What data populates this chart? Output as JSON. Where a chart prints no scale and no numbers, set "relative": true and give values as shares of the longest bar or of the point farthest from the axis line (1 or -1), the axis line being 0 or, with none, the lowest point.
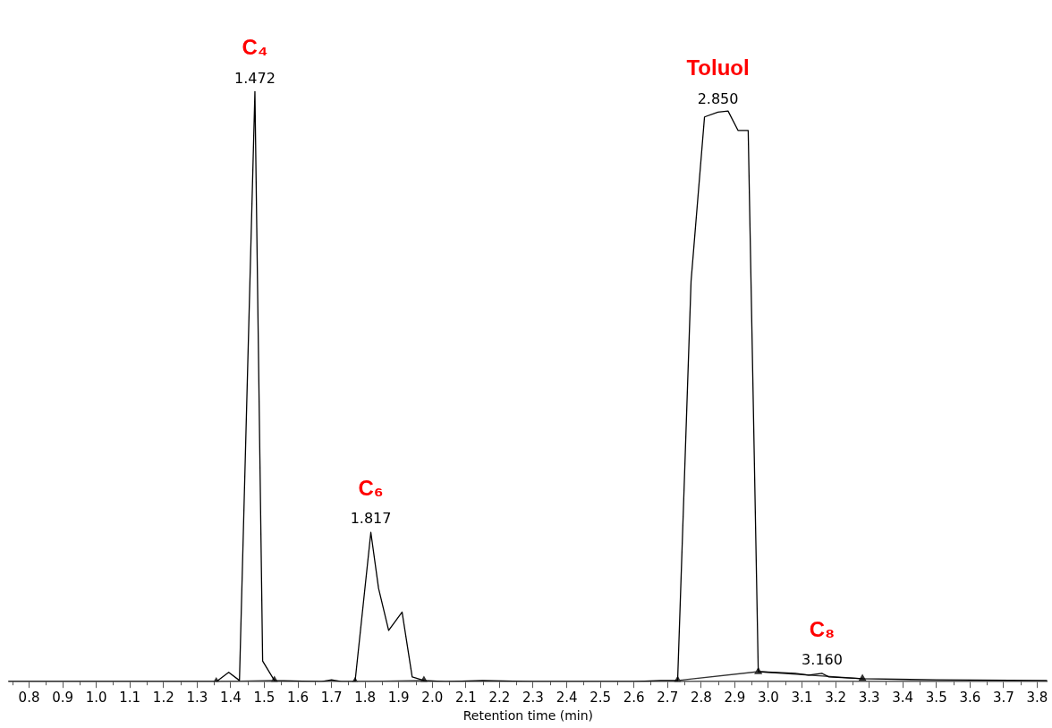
{
  "chart_data": {
    "type": "line",
    "xlabel": "Retention time (min)",
    "relative": true,
    "xlim": [
      0.74,
      3.83
    ],
    "xticks": [
      {
        "value": 0.75,
        "label": null
      },
      {
        "value": 0.8,
        "label": "0.8"
      },
      {
        "value": 0.85,
        "label": null
      },
      {
        "value": 0.9,
        "label": "0.9"
      },
      {
        "value": 0.95,
        "label": null
      },
      {
        "value": 1.0,
        "label": "1.0"
      },
      {
        "value": 1.05,
        "label": null
      },
      {
        "value": 1.1,
        "label": "1.1"
      },
      {
        "value": 1.15,
        "label": null
      },
      {
        "value": 1.2,
        "label": "1.2"
      },
      {
        "value": 1.25,
        "label": null
      },
      {
        "value": 1.3,
        "label": "1.3"
      },
      {
        "value": 1.35,
        "label": null
      },
      {
        "value": 1.4,
        "label": "1.4"
      },
      {
        "value": 1.45,
        "label": null
      },
      {
        "value": 1.5,
        "label": "1.5"
      },
      {
        "value": 1.55,
        "label": null
      },
      {
        "value": 1.6,
        "label": "1.6"
      },
      {
        "value": 1.65,
        "label": null
      },
      {
        "value": 1.7,
        "label": "1.7"
      },
      {
        "value": 1.75,
        "label": null
      },
      {
        "value": 1.8,
        "label": "1.8"
      },
      {
        "value": 1.85,
        "label": null
      },
      {
        "value": 1.9,
        "label": "1.9"
      },
      {
        "value": 1.95,
        "label": null
      },
      {
        "value": 2.0,
        "label": "2.0"
      },
      {
        "value": 2.05,
        "label": null
      },
      {
        "value": 2.1,
        "label": "2.1"
      },
      {
        "value": 2.15,
        "label": null
      },
      {
        "value": 2.2,
        "label": "2.2"
      },
      {
        "value": 2.25,
        "label": null
      },
      {
        "value": 2.3,
        "label": "2.3"
      },
      {
        "value": 2.35,
        "label": null
      },
      {
        "value": 2.4,
        "label": "2.4"
      },
      {
        "value": 2.45,
        "label": null
      },
      {
        "value": 2.5,
        "label": "2.5"
      },
      {
        "value": 2.55,
        "label": null
      },
      {
        "value": 2.6,
        "label": "2.6"
      },
      {
        "value": 2.65,
        "label": null
      },
      {
        "value": 2.7,
        "label": "2.7"
      },
      {
        "value": 2.75,
        "label": null
      },
      {
        "value": 2.8,
        "label": "2.8"
      },
      {
        "value": 2.85,
        "label": null
      },
      {
        "value": 2.9,
        "label": "2.9"
      },
      {
        "value": 2.95,
        "label": null
      },
      {
        "value": 3.0,
        "label": "3.0"
      },
      {
        "value": 3.05,
        "label": null
      },
      {
        "value": 3.1,
        "label": "3.1"
      },
      {
        "value": 3.15,
        "label": null
      },
      {
        "value": 3.2,
        "label": "3.2"
      },
      {
        "value": 3.25,
        "label": null
      },
      {
        "value": 3.3,
        "label": "3.3"
      },
      {
        "value": 3.35,
        "label": null
      },
      {
        "value": 3.4,
        "label": "3.4"
      },
      {
        "value": 3.45,
        "label": null
      },
      {
        "value": 3.5,
        "label": "3.5"
      },
      {
        "value": 3.55,
        "label": null
      },
      {
        "value": 3.6,
        "label": "3.6"
      },
      {
        "value": 3.65,
        "label": null
      },
      {
        "value": 3.7,
        "label": "3.7"
      },
      {
        "value": 3.75,
        "label": null
      },
      {
        "value": 3.8,
        "label": "3.8"
      }
    ],
    "tick_labels": "x",
    "grid": false,
    "legend": false,
    "marker": "none",
    "series": [
      {
        "color": "#000000",
        "x": [
          0.74,
          1.357,
          1.394,
          1.426,
          1.472,
          1.495,
          1.53,
          1.67,
          1.7,
          1.73,
          1.77,
          1.817,
          1.84,
          1.87,
          1.91,
          1.94,
          1.975,
          2.04,
          2.15,
          2.3,
          2.6,
          2.68,
          2.73,
          2.77,
          2.81,
          2.85,
          2.88,
          2.91,
          2.94,
          2.97,
          3.08,
          3.12,
          3.16,
          3.18,
          3.28,
          3.5,
          3.83
        ],
        "values": [
          0,
          0,
          0.016,
          0.002,
          1,
          0.035,
          0.002,
          0,
          0.003,
          0,
          0,
          0.253,
          0.158,
          0.087,
          0.118,
          0.008,
          0.002,
          0,
          0.002,
          0,
          0,
          0.002,
          0.002,
          0.679,
          0.957,
          0.965,
          0.967,
          0.934,
          0.934,
          0.017,
          0.014,
          0.011,
          0.014,
          0.008,
          0.005,
          0.003,
          0.002
        ]
      },
      {
        "color": "#333333",
        "marker": "triangle",
        "x": [
          1.357,
          1.53,
          1.6,
          1.77,
          1.975,
          2.3,
          2.73,
          2.97,
          3.28
        ],
        "values": [
          0,
          0.002,
          null,
          0,
          0.002,
          null,
          0.002,
          0.017,
          0.005
        ]
      }
    ],
    "annotations": [
      {
        "text": "1.472",
        "x": 1.472,
        "y": 1
      },
      {
        "text": "C₄",
        "x": 1.472,
        "y": 1
      },
      {
        "text": "1.817",
        "x": 1.817,
        "y": 0.253
      },
      {
        "text": "C₆",
        "x": 1.817,
        "y": 0.253
      },
      {
        "text": "2.850",
        "x": 2.85,
        "y": 0.965
      },
      {
        "text": "Toluol",
        "x": 2.85,
        "y": 0.965
      },
      {
        "text": "3.160",
        "x": 3.16,
        "y": 0.014
      },
      {
        "text": "C₈",
        "x": 3.16,
        "y": 0.014
      }
    ]
  }
}
